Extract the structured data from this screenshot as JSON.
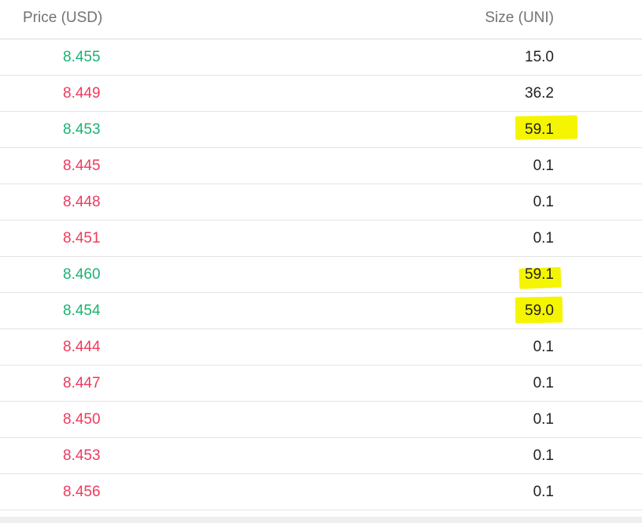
{
  "header": {
    "price_label": "Price (USD)",
    "size_label": "Size (UNI)"
  },
  "colors": {
    "up": "#1bb371",
    "down": "#ee3a5d",
    "highlight": "#f5f500"
  },
  "rows": [
    {
      "price": "8.455",
      "size": "15.0",
      "side": "up",
      "highlighted": false
    },
    {
      "price": "8.449",
      "size": "36.2",
      "side": "down",
      "highlighted": false
    },
    {
      "price": "8.453",
      "size": "59.1",
      "side": "up",
      "highlighted": true
    },
    {
      "price": "8.445",
      "size": "0.1",
      "side": "down",
      "highlighted": false
    },
    {
      "price": "8.448",
      "size": "0.1",
      "side": "down",
      "highlighted": false
    },
    {
      "price": "8.451",
      "size": "0.1",
      "side": "down",
      "highlighted": false
    },
    {
      "price": "8.460",
      "size": "59.1",
      "side": "up",
      "highlighted": true
    },
    {
      "price": "8.454",
      "size": "59.0",
      "side": "up",
      "highlighted": true
    },
    {
      "price": "8.444",
      "size": "0.1",
      "side": "down",
      "highlighted": false
    },
    {
      "price": "8.447",
      "size": "0.1",
      "side": "down",
      "highlighted": false
    },
    {
      "price": "8.450",
      "size": "0.1",
      "side": "down",
      "highlighted": false
    },
    {
      "price": "8.453",
      "size": "0.1",
      "side": "down",
      "highlighted": false
    },
    {
      "price": "8.456",
      "size": "0.1",
      "side": "down",
      "highlighted": false
    }
  ]
}
